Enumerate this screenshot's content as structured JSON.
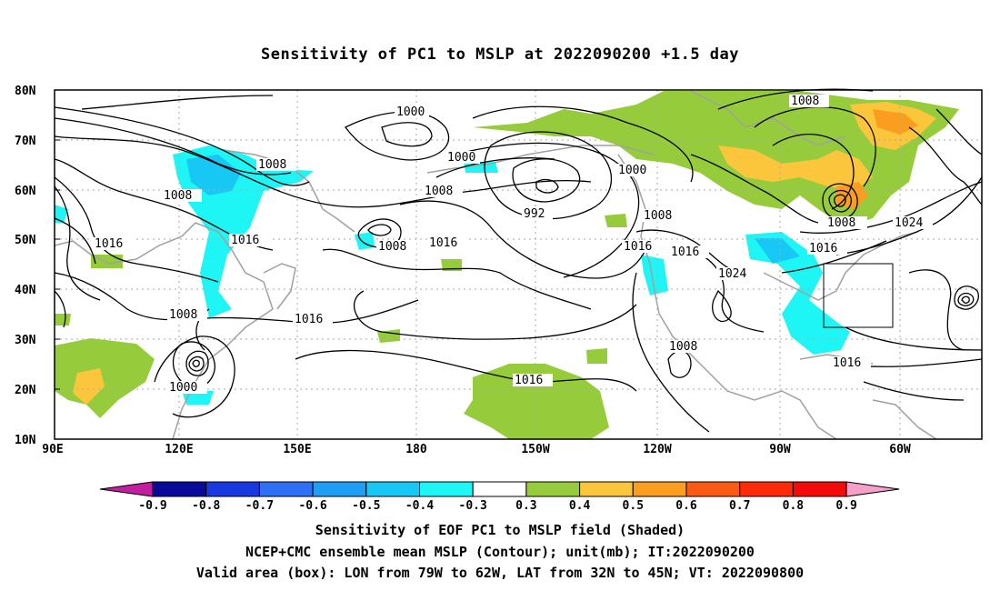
{
  "title": "Sensitivity of PC1 to MSLP at 2022090200 +1.5 day",
  "lat_ticks": [
    "80N",
    "70N",
    "60N",
    "50N",
    "40N",
    "30N",
    "20N",
    "10N"
  ],
  "lon_ticks": [
    "90E",
    "120E",
    "150E",
    "180",
    "150W",
    "120W",
    "90W",
    "60W"
  ],
  "colorbar": {
    "labels": [
      "-0.9",
      "-0.8",
      "-0.7",
      "-0.6",
      "-0.5",
      "-0.4",
      "-0.3",
      "0.3",
      "0.4",
      "0.5",
      "0.6",
      "0.7",
      "0.8",
      "0.9"
    ],
    "colors": [
      "#0a0a9a",
      "#1838e0",
      "#2f6ff5",
      "#1e9ef5",
      "#17c8f5",
      "#1ef5f5",
      "#ffffff",
      "#96cc3c",
      "#fcc63c",
      "#fb9d1f",
      "#fb5a14",
      "#ff2a0a",
      "#f50a0a"
    ],
    "low_end": "#c41ea0",
    "high_end": "#f5a0c8"
  },
  "contour_labels": [
    {
      "text": "1000"
    },
    {
      "text": "1008"
    },
    {
      "text": "1000"
    },
    {
      "text": "1008"
    },
    {
      "text": "992"
    },
    {
      "text": "1000"
    },
    {
      "text": "1008"
    },
    {
      "text": "1008"
    },
    {
      "text": "1016"
    },
    {
      "text": "1008"
    },
    {
      "text": "1016"
    },
    {
      "text": "1016"
    },
    {
      "text": "1016"
    },
    {
      "text": "1024"
    },
    {
      "text": "1008"
    },
    {
      "text": "1016"
    },
    {
      "text": "1016"
    },
    {
      "text": "1008"
    },
    {
      "text": "1000"
    },
    {
      "text": "1016"
    },
    {
      "text": "1016"
    },
    {
      "text": "1008"
    },
    {
      "text": "1016"
    },
    {
      "text": "1024"
    }
  ],
  "validation_box": {
    "lon_west": -79,
    "lon_east": -62,
    "lat_south": 32,
    "lat_north": 45
  },
  "caption": {
    "line1": "Sensitivity of EOF PC1 to MSLP field (Shaded)",
    "line2": "NCEP+CMC ensemble mean MSLP (Contour); unit(mb); IT:2022090200",
    "line3": "Valid area (box): LON from 79W to 62W, LAT from 32N to 45N; VT: 2022090800"
  }
}
